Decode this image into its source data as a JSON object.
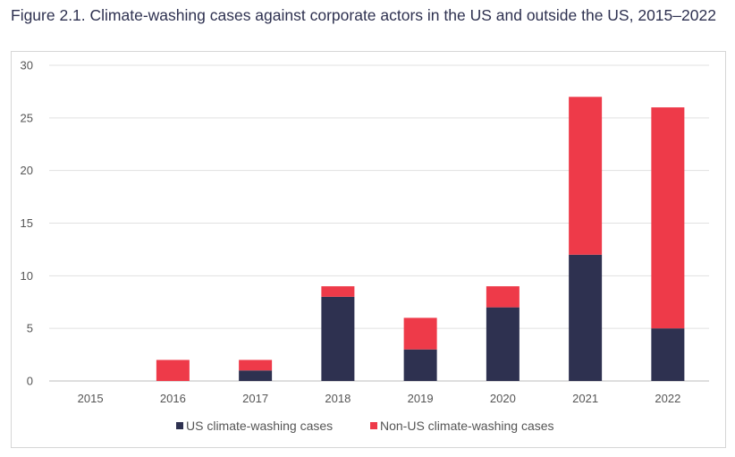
{
  "title": "Figure 2.1. Climate-washing cases against corporate actors in the US and outside the US, 2015–2022",
  "chart_data": {
    "type": "bar",
    "stacked": true,
    "categories": [
      "2015",
      "2016",
      "2017",
      "2018",
      "2019",
      "2020",
      "2021",
      "2022"
    ],
    "series": [
      {
        "name": "US climate-washing cases",
        "values": [
          0,
          0,
          1,
          8,
          3,
          7,
          12,
          5
        ],
        "color": "#2e3150"
      },
      {
        "name": "Non-US climate-washing cases",
        "values": [
          0,
          2,
          1,
          1,
          3,
          2,
          15,
          21
        ],
        "color": "#ee3a49"
      }
    ],
    "ylim": [
      0,
      30
    ],
    "yticks": [
      0,
      5,
      10,
      15,
      20,
      25,
      30
    ],
    "grid": true,
    "legend": "bottom"
  }
}
